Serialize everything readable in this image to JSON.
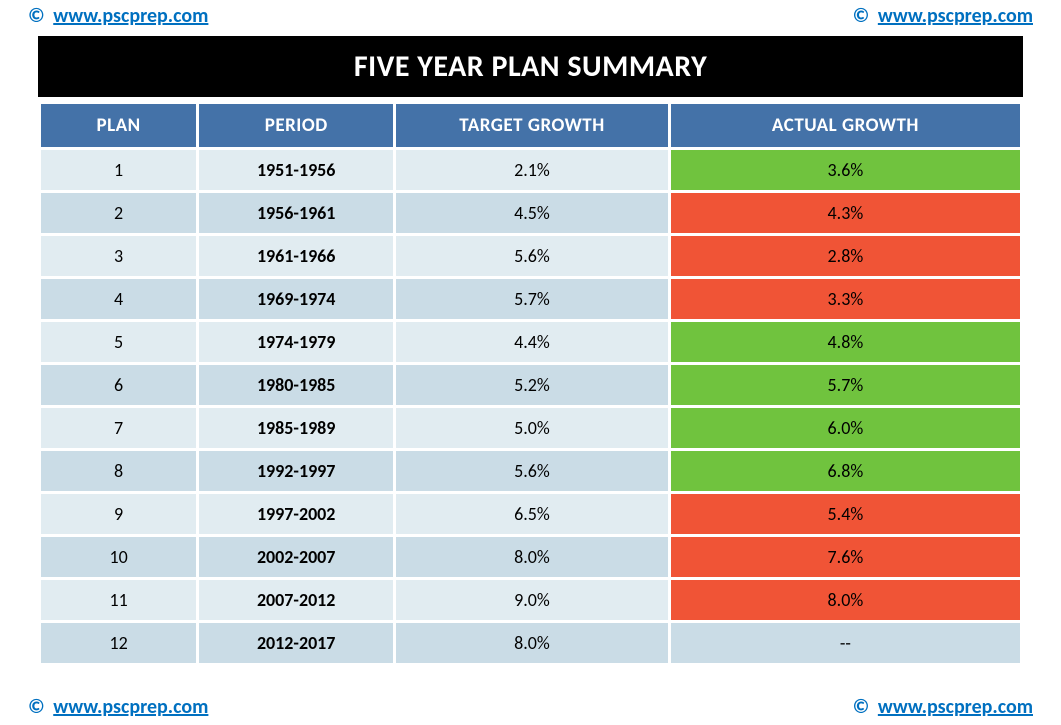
{
  "watermark": {
    "symbol": "©",
    "url": "www.pscprep.com"
  },
  "title": "FIVE YEAR PLAN SUMMARY",
  "colors": {
    "header_bg": "#4472a8",
    "header_fg": "#ffffff",
    "row_odd_bg": "#e1ecf1",
    "row_even_bg": "#cadce6",
    "actual_green": "#70c33e",
    "actual_red": "#f05436",
    "actual_none": "#cadce6",
    "title_bg": "#000000",
    "title_fg": "#ffffff",
    "link": "#0070c0"
  },
  "columns": [
    "PLAN",
    "PERIOD",
    "TARGET GROWTH",
    "ACTUAL GROWTH"
  ],
  "rows": [
    {
      "plan": "1",
      "period": "1951-1956",
      "target": "2.1%",
      "actual": "3.6%",
      "actual_status": "green"
    },
    {
      "plan": "2",
      "period": "1956-1961",
      "target": "4.5%",
      "actual": "4.3%",
      "actual_status": "red"
    },
    {
      "plan": "3",
      "period": "1961-1966",
      "target": "5.6%",
      "actual": "2.8%",
      "actual_status": "red"
    },
    {
      "plan": "4",
      "period": "1969-1974",
      "target": "5.7%",
      "actual": "3.3%",
      "actual_status": "red"
    },
    {
      "plan": "5",
      "period": "1974-1979",
      "target": "4.4%",
      "actual": "4.8%",
      "actual_status": "green"
    },
    {
      "plan": "6",
      "period": "1980-1985",
      "target": "5.2%",
      "actual": "5.7%",
      "actual_status": "green"
    },
    {
      "plan": "7",
      "period": "1985-1989",
      "target": "5.0%",
      "actual": "6.0%",
      "actual_status": "green"
    },
    {
      "plan": "8",
      "period": "1992-1997",
      "target": "5.6%",
      "actual": "6.8%",
      "actual_status": "green"
    },
    {
      "plan": "9",
      "period": "1997-2002",
      "target": "6.5%",
      "actual": "5.4%",
      "actual_status": "red"
    },
    {
      "plan": "10",
      "period": "2002-2007",
      "target": "8.0%",
      "actual": "7.6%",
      "actual_status": "red"
    },
    {
      "plan": "11",
      "period": "2007-2012",
      "target": "9.0%",
      "actual": "8.0%",
      "actual_status": "red"
    },
    {
      "plan": "12",
      "period": "2012-2017",
      "target": "8.0%",
      "actual": "--",
      "actual_status": "none"
    }
  ]
}
